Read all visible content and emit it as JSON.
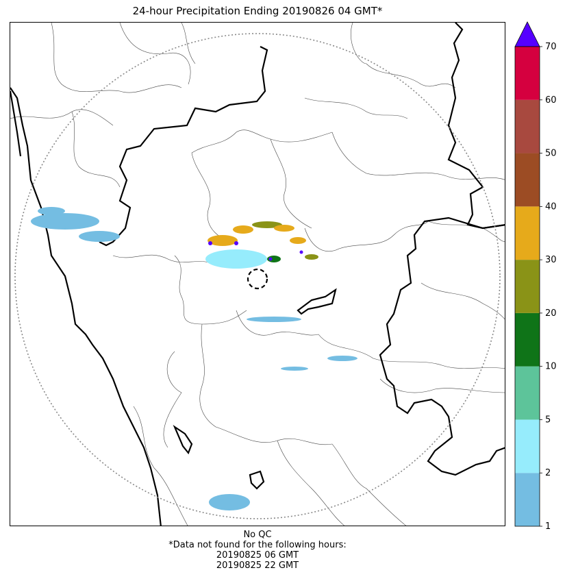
{
  "title": "24-hour Precipitation Ending 20190826 04 GMT*",
  "colorbar": {
    "ticks": [
      "1",
      "2",
      "5",
      "10",
      "20",
      "30",
      "40",
      "50",
      "60",
      "70"
    ],
    "colors": [
      "#74bde2",
      "#96ecfc",
      "#5dc49a",
      "#0f7418",
      "#8a9317",
      "#e6aa1b",
      "#9c4c24",
      "#a8493f",
      "#d5003f"
    ],
    "extend_color": "#5500ff",
    "extend": "max"
  },
  "footer": {
    "qc": "No QC",
    "note": "*Data not found for the following hours:",
    "missing_hours": [
      "20190825 06 GMT",
      "20190825 22 GMT"
    ]
  },
  "map": {
    "radar_range_ring": "dotted",
    "radar_site_marker": "dashed-circle",
    "boundaries": [
      "state-border",
      "district-border",
      "coastline"
    ]
  }
}
